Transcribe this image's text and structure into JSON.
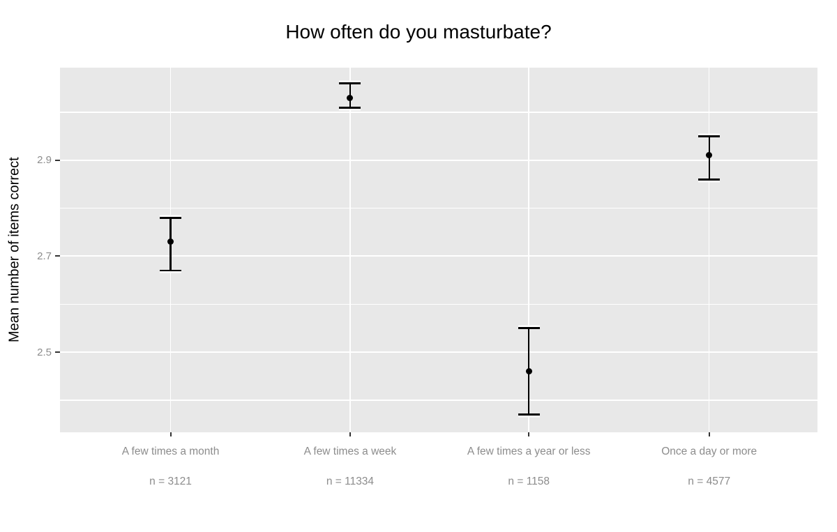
{
  "chart_data": {
    "type": "scatter",
    "subtype": "point-with-error-bars",
    "title": "How often do you masturbate?",
    "ylabel": "Mean number of items correct",
    "xlabel": "",
    "legend": "none",
    "grid": true,
    "categories": [
      "A few times a month",
      "A few times a week",
      "A few times a year or less",
      "Once a day or more"
    ],
    "n_labels": [
      "n = 3121",
      "n = 11334",
      "n = 1158",
      "n = 4577"
    ],
    "points": [
      {
        "category": "A few times a month",
        "n": 3121,
        "mean": 2.73,
        "ci_low": 2.67,
        "ci_high": 2.78,
        "x_pct": 14.6
      },
      {
        "category": "A few times a week",
        "n": 11334,
        "mean": 3.03,
        "ci_low": 3.01,
        "ci_high": 3.06,
        "x_pct": 38.3
      },
      {
        "category": "A few times a year or less",
        "n": 1158,
        "mean": 2.46,
        "ci_low": 2.37,
        "ci_high": 2.55,
        "x_pct": 61.9
      },
      {
        "category": "Once a day or more",
        "n": 4577,
        "mean": 2.91,
        "ci_low": 2.86,
        "ci_high": 2.95,
        "x_pct": 85.7
      }
    ],
    "y_axis": {
      "ticks": [
        {
          "label": "2.5",
          "value": 2.5
        },
        {
          "label": "2.7",
          "value": 2.7
        },
        {
          "label": "2.9",
          "value": 2.9
        }
      ],
      "minor_gridlines": [
        2.4,
        2.6,
        2.8,
        3.0
      ],
      "ylim": [
        2.333,
        3.093
      ]
    },
    "colors": {
      "panel_bg": "#e8e8e8",
      "grid": "#ffffff",
      "point": "#000000",
      "axis_text": "#8c8c8c",
      "tick_mark": "#333333",
      "title_text": "#000000"
    }
  }
}
